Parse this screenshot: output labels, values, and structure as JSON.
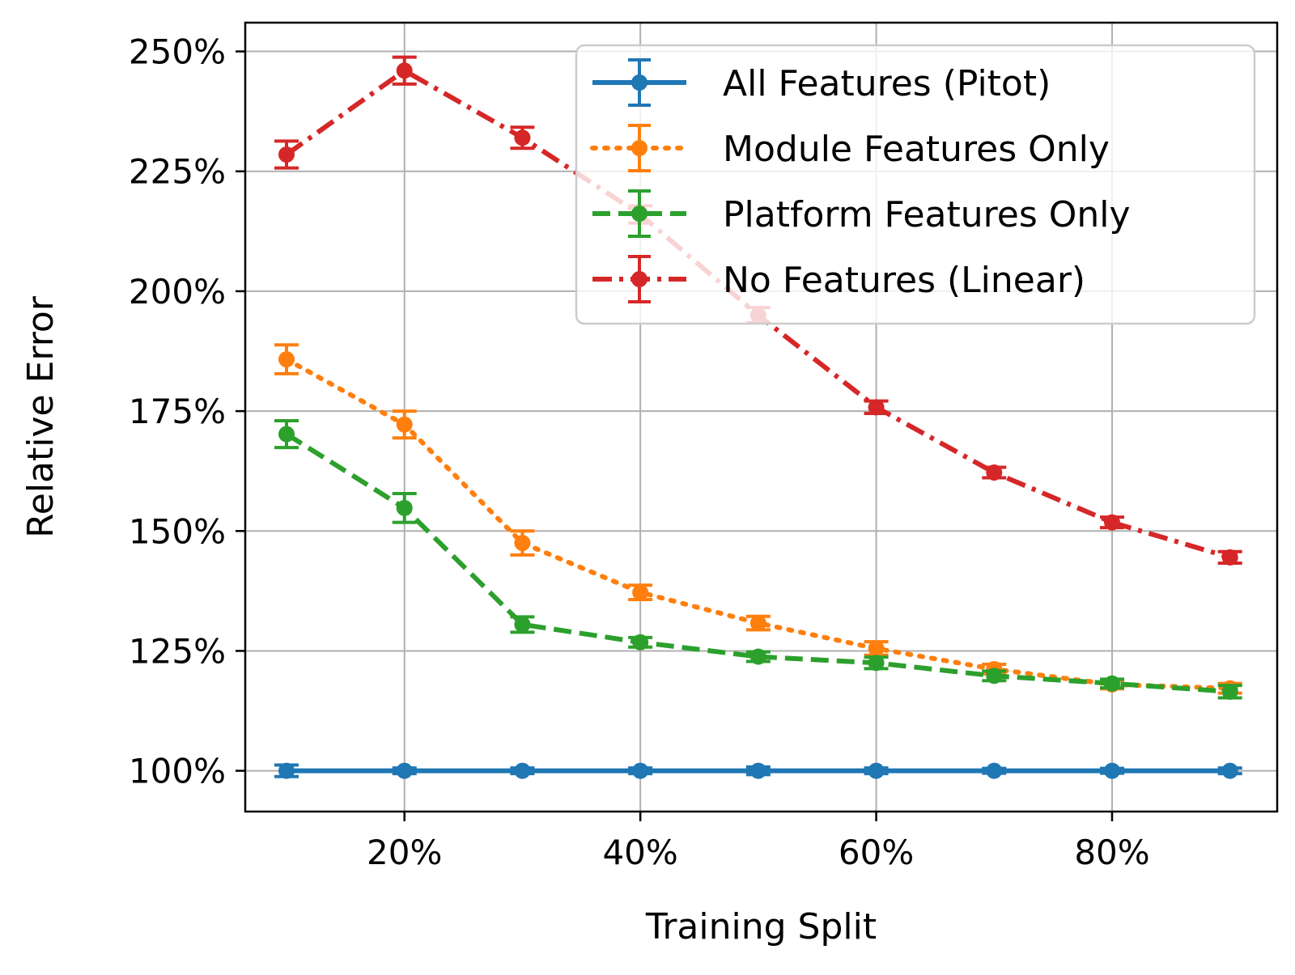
{
  "chart_data": {
    "type": "line",
    "title": "",
    "xlabel": "Training Split",
    "ylabel": "Relative Error",
    "xlim": [
      6.5,
      94
    ],
    "ylim": [
      91.5,
      256
    ],
    "xticks": [
      20,
      40,
      60,
      80
    ],
    "xtick_labels": [
      "20%",
      "40%",
      "60%",
      "80%"
    ],
    "yticks": [
      100,
      125,
      150,
      175,
      200,
      225,
      250
    ],
    "ytick_labels": [
      "100%",
      "125%",
      "150%",
      "175%",
      "200%",
      "225%",
      "250%"
    ],
    "grid": true,
    "legend_position": "top-right",
    "x": [
      10,
      20,
      30,
      40,
      50,
      60,
      70,
      80,
      90
    ],
    "series": [
      {
        "name": "All Features (Pitot)",
        "color": "#1f77b4",
        "linestyle": "solid",
        "values": [
          100,
          100,
          100,
          100,
          100,
          100,
          100,
          100,
          100
        ],
        "errors": [
          1.2,
          0.6,
          0.6,
          0.6,
          0.8,
          0.6,
          0.5,
          0.5,
          0.6
        ]
      },
      {
        "name": "Module Features Only",
        "color": "#ff7f0e",
        "linestyle": "dotted",
        "values": [
          185.8,
          172.2,
          147.5,
          137.2,
          130.8,
          125.5,
          121.2,
          118.0,
          117.2
        ],
        "errors": [
          3.0,
          2.8,
          2.5,
          1.5,
          1.4,
          1.4,
          1.0,
          0.9,
          1.0
        ]
      },
      {
        "name": "Platform Features Only",
        "color": "#2ca02c",
        "linestyle": "dashed",
        "values": [
          170.2,
          154.8,
          130.5,
          126.8,
          123.8,
          122.5,
          119.8,
          118.2,
          116.5
        ],
        "errors": [
          2.8,
          3.0,
          1.6,
          1.0,
          1.0,
          1.2,
          1.0,
          0.9,
          1.3
        ]
      },
      {
        "name": "No Features (Linear)",
        "color": "#d62728",
        "linestyle": "dashdot",
        "values": [
          228.5,
          246.0,
          232.0,
          216.0,
          195.0,
          175.8,
          162.2,
          151.8,
          144.5
        ],
        "errors": [
          2.8,
          2.8,
          2.2,
          1.8,
          1.6,
          1.3,
          1.1,
          1.1,
          1.2
        ]
      }
    ]
  }
}
